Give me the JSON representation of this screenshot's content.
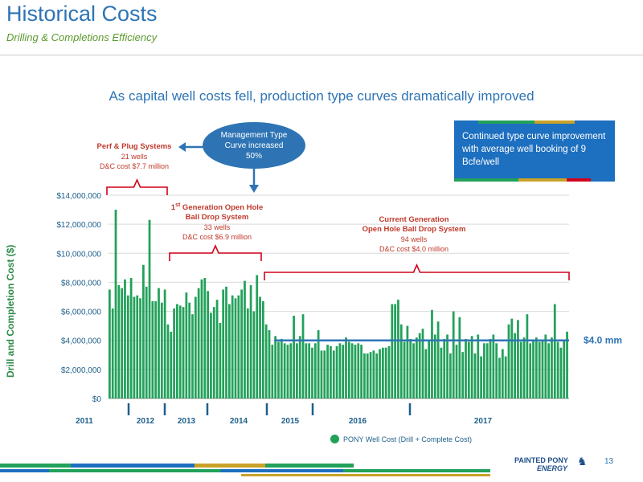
{
  "slide": {
    "title": "Historical Costs",
    "subtitle": "Drilling & Completions Efficiency",
    "headline": "As capital well costs fell, production type curves dramatically improved",
    "page_number": "13",
    "logo_line1": "PAINTED PONY",
    "logo_line2": "ENERGY"
  },
  "callouts": {
    "perf": {
      "title": "Perf & Plug Systems",
      "wells": "21 wells",
      "cost": "D&C cost $7.7 million"
    },
    "gen1": {
      "title_pre": "1",
      "title_sup": "st",
      "title_post": " Generation Open Hole",
      "title2": "Ball Drop System",
      "wells": "33 wells",
      "cost": "D&C cost $6.9 million"
    },
    "current": {
      "title": "Current Generation",
      "title2": "Open Hole Ball Drop System",
      "wells": "94 wells",
      "cost": "D&C cost $4.0 million"
    },
    "management": "Management Type Curve increased 50%",
    "blue_box": "Continued type curve improvement with average well booking of 9 Bcfe/well",
    "avg_label": "$4.0 mm"
  },
  "colors": {
    "bar": "#22a15a",
    "avg_line": "#2e74b5",
    "bracket": "#d0021b",
    "title": "#2e74b5"
  },
  "chart_data": {
    "type": "bar",
    "ylabel": "Drill and Completion Cost ($)",
    "ylim": [
      0,
      14000000
    ],
    "yticks": [
      "$0",
      "$2,000,000",
      "$4,000,000",
      "$6,000,000",
      "$8,000,000",
      "$10,000,000",
      "$12,000,000",
      "$14,000,000"
    ],
    "year_labels": [
      "2011",
      "2012",
      "2013",
      "2014",
      "2015",
      "2016",
      "2017"
    ],
    "legend": "PONY Well Cost (Drill + Complete Cost)",
    "average_line": 4000000,
    "values": [
      7500000,
      6200000,
      13000000,
      7800000,
      7600000,
      8200000,
      7100000,
      8300000,
      7000000,
      7100000,
      6900000,
      9200000,
      7700000,
      12300000,
      6700000,
      6700000,
      7600000,
      6600000,
      7500000,
      5100000,
      4600000,
      6200000,
      6500000,
      6400000,
      6300000,
      7300000,
      6600000,
      5800000,
      7000000,
      7600000,
      8200000,
      8300000,
      7400000,
      5900000,
      6300000,
      6800000,
      5200000,
      7500000,
      7700000,
      6500000,
      7100000,
      6900000,
      7100000,
      7500000,
      8100000,
      6200000,
      7800000,
      6000000,
      8500000,
      7000000,
      6700000,
      5100000,
      4700000,
      3700000,
      4300000,
      3900000,
      4100000,
      3800000,
      3700000,
      3800000,
      5700000,
      3800000,
      4300000,
      5800000,
      3800000,
      3800000,
      3500000,
      3800000,
      4700000,
      3300000,
      3300000,
      3700000,
      3600000,
      3300000,
      3600000,
      3800000,
      3700000,
      4200000,
      3900000,
      3800000,
      3700000,
      3800000,
      3700000,
      3100000,
      3100000,
      3200000,
      3300000,
      3100000,
      3400000,
      3500000,
      3500000,
      3600000,
      6500000,
      6500000,
      6800000,
      5100000,
      3900000,
      5000000,
      4100000,
      3800000,
      4200000,
      4500000,
      4800000,
      3400000,
      4000000,
      6100000,
      4400000,
      5300000,
      3500000,
      4100000,
      4400000,
      3100000,
      6000000,
      3700000,
      5600000,
      3200000,
      4100000,
      3900000,
      4300000,
      3100000,
      4400000,
      2900000,
      3800000,
      3800000,
      4100000,
      4400000,
      3800000,
      2800000,
      3400000,
      2900000,
      5100000,
      5500000,
      4500000,
      5400000,
      3900000,
      4200000,
      5800000,
      3800000,
      4000000,
      4200000,
      3900000,
      4000000,
      4400000,
      3800000,
      4200000,
      6500000,
      3900000,
      3500000,
      4000000,
      4600000
    ]
  }
}
